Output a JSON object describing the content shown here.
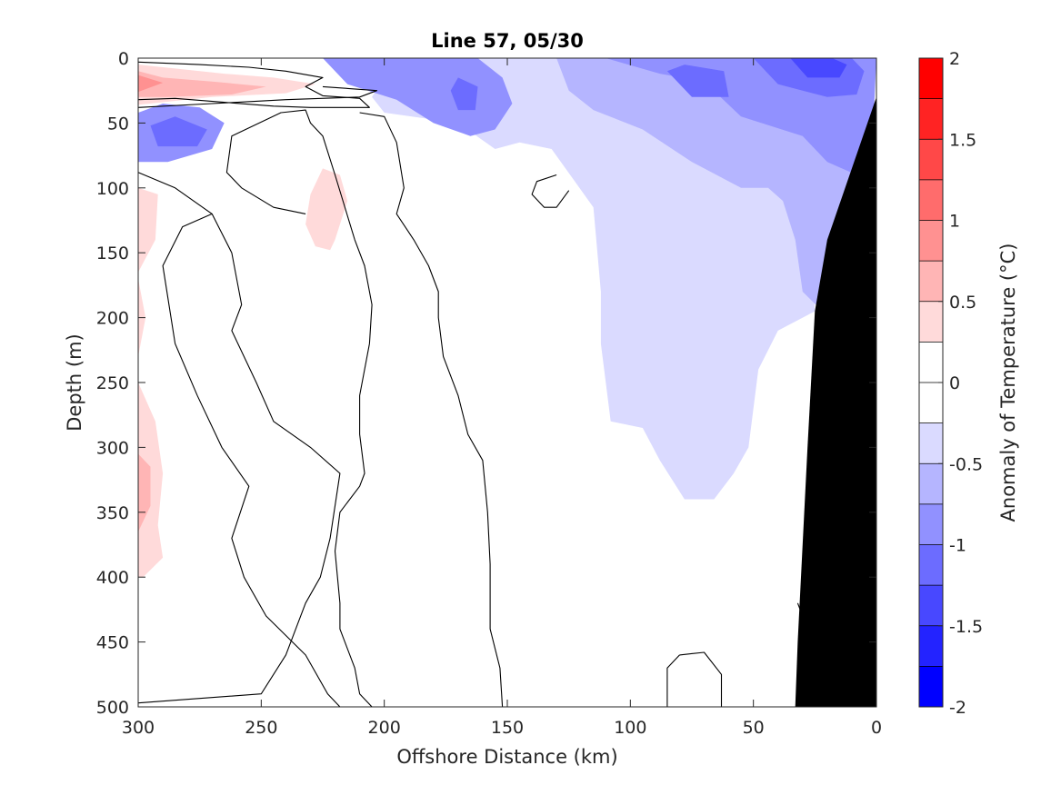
{
  "chart_data": {
    "type": "heatmap",
    "title": "Line 57, 05/30",
    "xlabel": "Offshore Distance (km)",
    "ylabel": "Depth (m)",
    "xlim": [
      300,
      0
    ],
    "ylim": [
      0,
      500
    ],
    "x_reversed": true,
    "y_reversed": true,
    "x_ticks": [
      300,
      250,
      200,
      150,
      100,
      50,
      0
    ],
    "y_ticks": [
      0,
      50,
      100,
      150,
      200,
      250,
      300,
      350,
      400,
      450,
      500
    ],
    "colorbar": {
      "label": "Anomaly of Temperature (°C)",
      "range": [
        -2,
        2
      ],
      "step": 0.25,
      "ticks": [
        2,
        1.5,
        1,
        0.5,
        0,
        -0.5,
        -1,
        -1.5,
        -2
      ],
      "colors": [
        "#0000ff",
        "#2323ff",
        "#4848ff",
        "#6c6cff",
        "#9191ff",
        "#b5b5ff",
        "#dadaff",
        "#ffffff",
        "#ffffff",
        "#ffdada",
        "#ffb5b5",
        "#ff9191",
        "#ff6c6c",
        "#ff4848",
        "#ff2323",
        "#ff0000"
      ]
    },
    "regions": [
      {
        "level": -0.375,
        "points": [
          [
            242,
            0
          ],
          [
            195,
            0
          ],
          [
            205,
            30
          ],
          [
            200,
            42
          ],
          [
            170,
            50
          ],
          [
            155,
            70
          ],
          [
            145,
            65
          ],
          [
            132,
            70
          ],
          [
            115,
            115
          ],
          [
            112,
            180
          ],
          [
            112,
            220
          ],
          [
            108,
            280
          ],
          [
            95,
            285
          ],
          [
            88,
            310
          ],
          [
            78,
            340
          ],
          [
            66,
            340
          ],
          [
            58,
            320
          ],
          [
            52,
            300
          ],
          [
            48,
            240
          ],
          [
            40,
            210
          ],
          [
            25,
            195
          ],
          [
            28,
            100
          ],
          [
            5,
            30
          ],
          [
            0,
            0
          ]
        ]
      },
      {
        "level": -0.625,
        "points": [
          [
            130,
            0
          ],
          [
            125,
            25
          ],
          [
            115,
            40
          ],
          [
            95,
            55
          ],
          [
            75,
            80
          ],
          [
            55,
            100
          ],
          [
            44,
            100
          ],
          [
            38,
            110
          ],
          [
            33,
            140
          ],
          [
            30,
            180
          ],
          [
            22,
            195
          ],
          [
            10,
            135
          ],
          [
            2,
            40
          ],
          [
            0,
            0
          ]
        ]
      },
      {
        "level": -0.875,
        "points": [
          [
            225,
            0
          ],
          [
            215,
            20
          ],
          [
            195,
            32
          ],
          [
            180,
            50
          ],
          [
            165,
            60
          ],
          [
            155,
            55
          ],
          [
            148,
            35
          ],
          [
            152,
            15
          ],
          [
            162,
            0
          ]
        ]
      },
      {
        "level": -0.875,
        "points": [
          [
            300,
            42
          ],
          [
            290,
            35
          ],
          [
            275,
            38
          ],
          [
            265,
            50
          ],
          [
            270,
            70
          ],
          [
            288,
            80
          ],
          [
            300,
            80
          ]
        ]
      },
      {
        "level": -0.875,
        "points": [
          [
            110,
            0
          ],
          [
            88,
            12
          ],
          [
            70,
            18
          ],
          [
            55,
            45
          ],
          [
            30,
            60
          ],
          [
            20,
            80
          ],
          [
            8,
            90
          ],
          [
            2,
            80
          ],
          [
            0,
            0
          ]
        ]
      },
      {
        "level": -1.125,
        "points": [
          [
            170,
            15
          ],
          [
            162,
            22
          ],
          [
            163,
            40
          ],
          [
            170,
            40
          ],
          [
            173,
            25
          ]
        ]
      },
      {
        "level": -1.125,
        "points": [
          [
            295,
            52
          ],
          [
            285,
            45
          ],
          [
            272,
            55
          ],
          [
            276,
            68
          ],
          [
            292,
            68
          ]
        ]
      },
      {
        "level": -1.125,
        "points": [
          [
            85,
            10
          ],
          [
            75,
            30
          ],
          [
            60,
            30
          ],
          [
            62,
            10
          ],
          [
            78,
            5
          ]
        ]
      },
      {
        "level": -1.125,
        "points": [
          [
            50,
            0
          ],
          [
            40,
            20
          ],
          [
            20,
            30
          ],
          [
            8,
            28
          ],
          [
            5,
            10
          ],
          [
            10,
            0
          ]
        ]
      },
      {
        "level": -1.375,
        "points": [
          [
            35,
            0
          ],
          [
            28,
            15
          ],
          [
            15,
            15
          ],
          [
            12,
            5
          ],
          [
            18,
            0
          ]
        ]
      },
      {
        "level": 0.375,
        "points": [
          [
            300,
            5
          ],
          [
            285,
            8
          ],
          [
            265,
            12
          ],
          [
            245,
            15
          ],
          [
            228,
            20
          ],
          [
            240,
            27
          ],
          [
            270,
            30
          ],
          [
            300,
            36
          ]
        ]
      },
      {
        "level": 0.625,
        "points": [
          [
            300,
            10
          ],
          [
            290,
            15
          ],
          [
            270,
            18
          ],
          [
            248,
            22
          ],
          [
            262,
            28
          ],
          [
            288,
            30
          ],
          [
            300,
            30
          ]
        ]
      },
      {
        "level": 0.875,
        "points": [
          [
            300,
            13
          ],
          [
            290,
            19
          ],
          [
            300,
            26
          ]
        ]
      },
      {
        "level": 0.375,
        "points": [
          [
            225,
            85
          ],
          [
            218,
            90
          ],
          [
            215,
            110
          ],
          [
            220,
            140
          ],
          [
            222,
            148
          ],
          [
            228,
            145
          ],
          [
            232,
            128
          ],
          [
            230,
            105
          ]
        ]
      },
      {
        "level": 0.375,
        "points": [
          [
            300,
            100
          ],
          [
            292,
            105
          ],
          [
            293,
            140
          ],
          [
            300,
            165
          ]
        ]
      },
      {
        "level": 0.375,
        "points": [
          [
            300,
            170
          ],
          [
            297,
            200
          ],
          [
            300,
            230
          ]
        ]
      },
      {
        "level": 0.375,
        "points": [
          [
            300,
            250
          ],
          [
            293,
            280
          ],
          [
            290,
            320
          ],
          [
            292,
            360
          ],
          [
            290,
            385
          ],
          [
            298,
            400
          ],
          [
            300,
            400
          ]
        ]
      },
      {
        "level": 0.625,
        "points": [
          [
            300,
            305
          ],
          [
            295,
            315
          ],
          [
            295,
            345
          ],
          [
            300,
            365
          ]
        ]
      }
    ],
    "contours_zero": [
      [
        [
          300,
          32
        ],
        [
          285,
          31
        ],
        [
          265,
          34
        ],
        [
          245,
          37
        ],
        [
          230,
          38
        ],
        [
          206,
          38
        ],
        [
          210,
          31
        ],
        [
          225,
          29
        ],
        [
          232,
          22
        ],
        [
          225,
          15
        ],
        [
          240,
          10
        ],
        [
          255,
          7
        ],
        [
          275,
          5
        ],
        [
          300,
          3
        ]
      ],
      [
        [
          300,
          38
        ],
        [
          270,
          35
        ],
        [
          240,
          32
        ],
        [
          210,
          30
        ],
        [
          203,
          25
        ],
        [
          225,
          22
        ]
      ],
      [
        [
          300,
          88
        ],
        [
          285,
          100
        ],
        [
          270,
          120
        ],
        [
          262,
          150
        ],
        [
          258,
          190
        ],
        [
          262,
          210
        ],
        [
          252,
          250
        ],
        [
          245,
          280
        ],
        [
          230,
          300
        ],
        [
          218,
          320
        ],
        [
          222,
          370
        ],
        [
          226,
          400
        ],
        [
          232,
          420
        ],
        [
          240,
          460
        ],
        [
          250,
          490
        ],
        [
          300,
          497
        ]
      ],
      [
        [
          270,
          120
        ],
        [
          282,
          130
        ],
        [
          290,
          160
        ],
        [
          285,
          220
        ],
        [
          276,
          260
        ],
        [
          266,
          300
        ],
        [
          255,
          330
        ],
        [
          262,
          370
        ],
        [
          257,
          400
        ],
        [
          248,
          430
        ],
        [
          232,
          460
        ],
        [
          223,
          490
        ],
        [
          218,
          500
        ]
      ],
      [
        [
          232,
          120
        ],
        [
          245,
          115
        ],
        [
          258,
          100
        ],
        [
          264,
          88
        ],
        [
          262,
          60
        ],
        [
          242,
          42
        ],
        [
          232,
          40
        ],
        [
          230,
          50
        ],
        [
          225,
          60
        ],
        [
          220,
          90
        ],
        [
          212,
          140
        ],
        [
          208,
          160
        ],
        [
          205,
          190
        ],
        [
          206,
          220
        ],
        [
          210,
          260
        ],
        [
          210,
          290
        ],
        [
          208,
          320
        ],
        [
          210,
          330
        ],
        [
          218,
          350
        ],
        [
          220,
          380
        ],
        [
          218,
          420
        ],
        [
          218,
          440
        ],
        [
          212,
          470
        ],
        [
          210,
          490
        ],
        [
          205,
          500
        ]
      ],
      [
        [
          210,
          42
        ],
        [
          200,
          45
        ],
        [
          195,
          65
        ],
        [
          192,
          100
        ],
        [
          195,
          120
        ],
        [
          188,
          140
        ],
        [
          182,
          160
        ],
        [
          178,
          180
        ],
        [
          178,
          200
        ],
        [
          176,
          230
        ],
        [
          170,
          260
        ],
        [
          166,
          290
        ],
        [
          160,
          310
        ],
        [
          158,
          350
        ],
        [
          157,
          390
        ],
        [
          157,
          440
        ],
        [
          153,
          470
        ],
        [
          152,
          500
        ]
      ],
      [
        [
          130,
          90
        ],
        [
          138,
          95
        ],
        [
          140,
          105
        ],
        [
          135,
          115
        ],
        [
          130,
          115
        ],
        [
          125,
          102
        ]
      ],
      [
        [
          80,
          460
        ],
        [
          70,
          458
        ],
        [
          63,
          475
        ],
        [
          63,
          500
        ]
      ],
      [
        [
          80,
          460
        ],
        [
          85,
          470
        ],
        [
          85,
          500
        ]
      ],
      [
        [
          32,
          420
        ],
        [
          28,
          440
        ],
        [
          25,
          470
        ],
        [
          22,
          500
        ]
      ]
    ],
    "topography_points": [
      [
        0,
        30
      ],
      [
        20,
        140
      ],
      [
        25,
        195
      ],
      [
        28,
        300
      ],
      [
        32,
        450
      ],
      [
        33,
        500
      ],
      [
        0,
        500
      ]
    ]
  }
}
